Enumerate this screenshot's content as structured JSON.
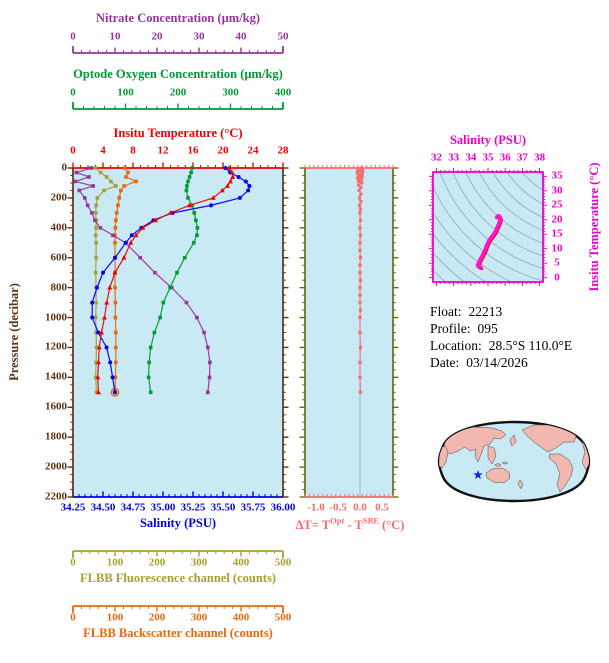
{
  "colors": {
    "figure_bg": "#FFFFFF",
    "panel_bg": "#C9E9F5",
    "pressure_axis": "#5C3317",
    "reference_line": "#9AACB8"
  },
  "info": {
    "lines": [
      {
        "label": "Float:",
        "value": "22213"
      },
      {
        "label": "Profile:",
        "value": "095"
      },
      {
        "label": "Location:",
        "value": "28.5°S  110.0°E"
      },
      {
        "label": "Date:",
        "value": "03/14/2026"
      }
    ]
  },
  "map": {
    "name": "world-map",
    "ocean_color": "#C9E9F5",
    "land_color": "#F2B8B0",
    "outline_color": "#111111",
    "marker": "float-position-star",
    "marker_color": "#1122EE"
  },
  "chart_data": [
    {
      "type": "line",
      "name": "profile-panel",
      "y_axis": {
        "label": "Pressure (decibar)",
        "range": [
          0,
          2200
        ],
        "tick_step": 200,
        "minor_step": 50,
        "color": "#5C3317"
      },
      "x_axes": {
        "temperature": {
          "label": "Insitu Temperature (°C)",
          "range": [
            0,
            28
          ],
          "ticks": [
            0,
            4,
            8,
            12,
            16,
            20,
            24,
            28
          ],
          "minor_step": 1,
          "color": "#F00000"
        },
        "salinity": {
          "label": "Salinity (PSU)",
          "range": [
            34.25,
            36.0
          ],
          "ticks": [
            34.25,
            34.5,
            34.75,
            35.0,
            35.25,
            35.5,
            35.75,
            36.0
          ],
          "tick_labels": [
            "34.25",
            "34.50",
            "34.75",
            "35.00",
            "35.25",
            "35.50",
            "35.75",
            "36.00"
          ],
          "minor_step": 0.05,
          "color": "#0000EE"
        },
        "oxygen": {
          "label": "Optode Oxygen Concentration (µm/kg)",
          "range": [
            0,
            400
          ],
          "ticks": [
            0,
            100,
            200,
            300,
            400
          ],
          "minor_step": 20,
          "color": "#009934"
        },
        "nitrate": {
          "label": "Nitrate Concentration (µm/kg)",
          "range": [
            0,
            50
          ],
          "ticks": [
            0,
            10,
            20,
            30,
            40,
            50
          ],
          "minor_step": 2,
          "color": "#993399"
        },
        "fluorescence": {
          "label": "FLBB Fluorescence channel (counts)",
          "range": [
            0,
            500
          ],
          "ticks": [
            0,
            100,
            200,
            300,
            400,
            500
          ],
          "minor_step": 20,
          "color": "#A8A032"
        },
        "backscatter": {
          "label": "FLBB Backscatter channel (counts)",
          "range": [
            0,
            500
          ],
          "ticks": [
            0,
            100,
            200,
            300,
            400,
            500
          ],
          "minor_step": 20,
          "color": "#E8680E"
        }
      },
      "pressure": [
        0,
        30,
        60,
        90,
        120,
        150,
        200,
        250,
        300,
        350,
        400,
        450,
        500,
        600,
        700,
        800,
        900,
        1000,
        1100,
        1200,
        1300,
        1400,
        1500
      ],
      "series": [
        {
          "id": "fluorescence",
          "axis": "fluorescence",
          "color": "#A8A032",
          "marker": "square",
          "values": [
            54,
            66,
            80,
            90,
            102,
            74,
            58,
            55,
            54,
            55,
            55,
            54,
            55,
            55,
            54,
            55,
            55,
            54,
            55,
            56,
            55,
            54,
            56
          ]
        },
        {
          "id": "backscatter",
          "axis": "backscatter",
          "color": "#E8680E",
          "marker": "square",
          "end_ring": true,
          "values": [
            123,
            131,
            126,
            150,
            122,
            114,
            110,
            107,
            104,
            102,
            101,
            100,
            100,
            100,
            100,
            100,
            101,
            101,
            102,
            102,
            102,
            101,
            100
          ]
        },
        {
          "id": "nitrate",
          "axis": "nitrate",
          "color": "#993399",
          "marker": "square",
          "values": [
            4.3,
            0.8,
            3.8,
            0.5,
            4.8,
            1.5,
            2.8,
            3.5,
            4.5,
            5.2,
            6.5,
            9.5,
            12.5,
            16.0,
            19.5,
            23.5,
            27.0,
            29.5,
            31.2,
            32.1,
            32.6,
            32.5,
            32.1
          ]
        },
        {
          "id": "oxygen",
          "axis": "oxygen",
          "color": "#009934",
          "marker": "square",
          "values": [
            227,
            225,
            222,
            219,
            217,
            216,
            219,
            227,
            231,
            234,
            237,
            236,
            230,
            213,
            198,
            185,
            172,
            166,
            155,
            148,
            145,
            144,
            148
          ]
        },
        {
          "id": "salinity",
          "axis": "salinity",
          "color": "#0000EE",
          "marker": "circle",
          "values": [
            35.52,
            35.56,
            35.63,
            35.69,
            35.72,
            35.71,
            35.64,
            35.4,
            35.08,
            34.92,
            34.82,
            34.74,
            34.69,
            34.6,
            34.5,
            34.45,
            34.41,
            34.41,
            34.46,
            34.53,
            34.56,
            34.58,
            34.6
          ]
        },
        {
          "id": "temperature",
          "axis": "temperature",
          "color": "#F00000",
          "marker": "triangle",
          "values": [
            20.8,
            21.2,
            21.3,
            21.0,
            20.6,
            19.9,
            18.7,
            15.5,
            13.0,
            11.0,
            9.3,
            8.4,
            7.7,
            6.8,
            5.6,
            4.9,
            4.5,
            4.2,
            3.8,
            3.5,
            3.4,
            3.3,
            3.4
          ]
        }
      ]
    },
    {
      "type": "line",
      "name": "temperature-difference-panel",
      "x_axis": {
        "label_parts": {
          "prefix": "ΔT= T",
          "sup1": "Opt",
          "mid": " - T",
          "sup2": "SBE",
          "suffix": " (°C)"
        },
        "range": [
          -1.25,
          0.75
        ],
        "ticks": [
          -1.0,
          -0.5,
          0.0,
          0.5
        ],
        "tick_labels": [
          "-1.0",
          "-0.5",
          "0.0",
          "0.5"
        ],
        "minor_step": 0.1,
        "color": "#F76B6B",
        "frame_color": "#6B6B10"
      },
      "pressure": [
        0,
        10,
        20,
        30,
        40,
        50,
        60,
        70,
        80,
        90,
        100,
        115,
        130,
        150,
        175,
        200,
        225,
        250,
        275,
        300,
        350,
        400,
        450,
        500,
        550,
        600,
        650,
        700,
        750,
        800,
        850,
        900,
        950,
        1000,
        1100,
        1200,
        1300,
        1400,
        1500
      ],
      "values": [
        0.03,
        -0.05,
        0.06,
        -0.06,
        0.05,
        -0.04,
        0.05,
        -0.05,
        0.03,
        -0.03,
        0.04,
        -0.03,
        0.02,
        -0.02,
        0.02,
        -0.01,
        0.02,
        -0.01,
        0.01,
        0.0,
        0.01,
        0.0,
        0.01,
        0.0,
        0.0,
        0.01,
        0.0,
        0.0,
        0.01,
        0.0,
        0.0,
        0.0,
        0.01,
        0.0,
        0.0,
        0.01,
        0.0,
        0.0,
        0.01
      ]
    },
    {
      "type": "line",
      "name": "ts-diagram",
      "x_axis": {
        "label": "Salinity (PSU)",
        "range": [
          31.8,
          38.2
        ],
        "ticks": [
          32,
          33,
          34,
          35,
          36,
          37,
          38
        ],
        "minor_step": 0.25,
        "color": "#EE00CC"
      },
      "y_axis": {
        "label": "Insitu Temperature (°C)",
        "range": [
          -1.5,
          36.5
        ],
        "ticks": [
          0,
          5,
          10,
          15,
          20,
          25,
          30,
          35
        ],
        "minor_step": 1,
        "color": "#EE00CC"
      },
      "curve_salinity": [
        35.52,
        35.56,
        35.63,
        35.69,
        35.72,
        35.71,
        35.64,
        35.4,
        35.08,
        34.92,
        34.82,
        34.74,
        34.69,
        34.6,
        34.5,
        34.45,
        34.41,
        34.41,
        34.46,
        34.53,
        34.56,
        34.58,
        34.6
      ],
      "curve_temperature": [
        20.8,
        21.2,
        21.3,
        21.0,
        20.6,
        19.9,
        18.7,
        15.5,
        13.0,
        11.0,
        9.3,
        8.4,
        7.7,
        6.8,
        5.6,
        4.9,
        4.5,
        4.2,
        3.8,
        3.5,
        3.4,
        3.3,
        3.4
      ],
      "curve_color": "#FF14C8",
      "curve_casing_color": "#E00000",
      "isopycnal_color": "#90A4B2"
    }
  ]
}
